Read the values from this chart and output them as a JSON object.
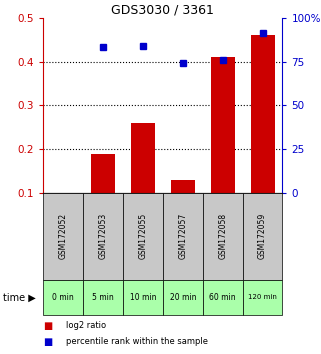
{
  "title": "GDS3030 / 3361",
  "samples": [
    "GSM172052",
    "GSM172053",
    "GSM172055",
    "GSM172057",
    "GSM172058",
    "GSM172059"
  ],
  "time_labels": [
    "0 min",
    "5 min",
    "10 min",
    "20 min",
    "60 min",
    "120 min"
  ],
  "log2_ratio": [
    null,
    0.19,
    0.26,
    0.13,
    0.41,
    0.46
  ],
  "percentile_rank": [
    null,
    83,
    84,
    74,
    76,
    91
  ],
  "left_ylim": [
    0.1,
    0.5
  ],
  "right_ylim": [
    0,
    100
  ],
  "left_yticks": [
    0.1,
    0.2,
    0.3,
    0.4,
    0.5
  ],
  "right_yticks": [
    0,
    25,
    50,
    75,
    100
  ],
  "right_yticklabels": [
    "0",
    "25",
    "50",
    "75",
    "100%"
  ],
  "hlines": [
    0.2,
    0.3,
    0.4
  ],
  "bar_color": "#cc0000",
  "dot_color": "#0000cc",
  "left_axis_color": "#cc0000",
  "right_axis_color": "#0000cc",
  "gray_bg": "#c8c8c8",
  "green_bg": "#aaffaa",
  "white_bg": "#ffffff",
  "title_color": "#000000",
  "fig_width": 3.21,
  "fig_height": 3.54,
  "dpi": 100
}
